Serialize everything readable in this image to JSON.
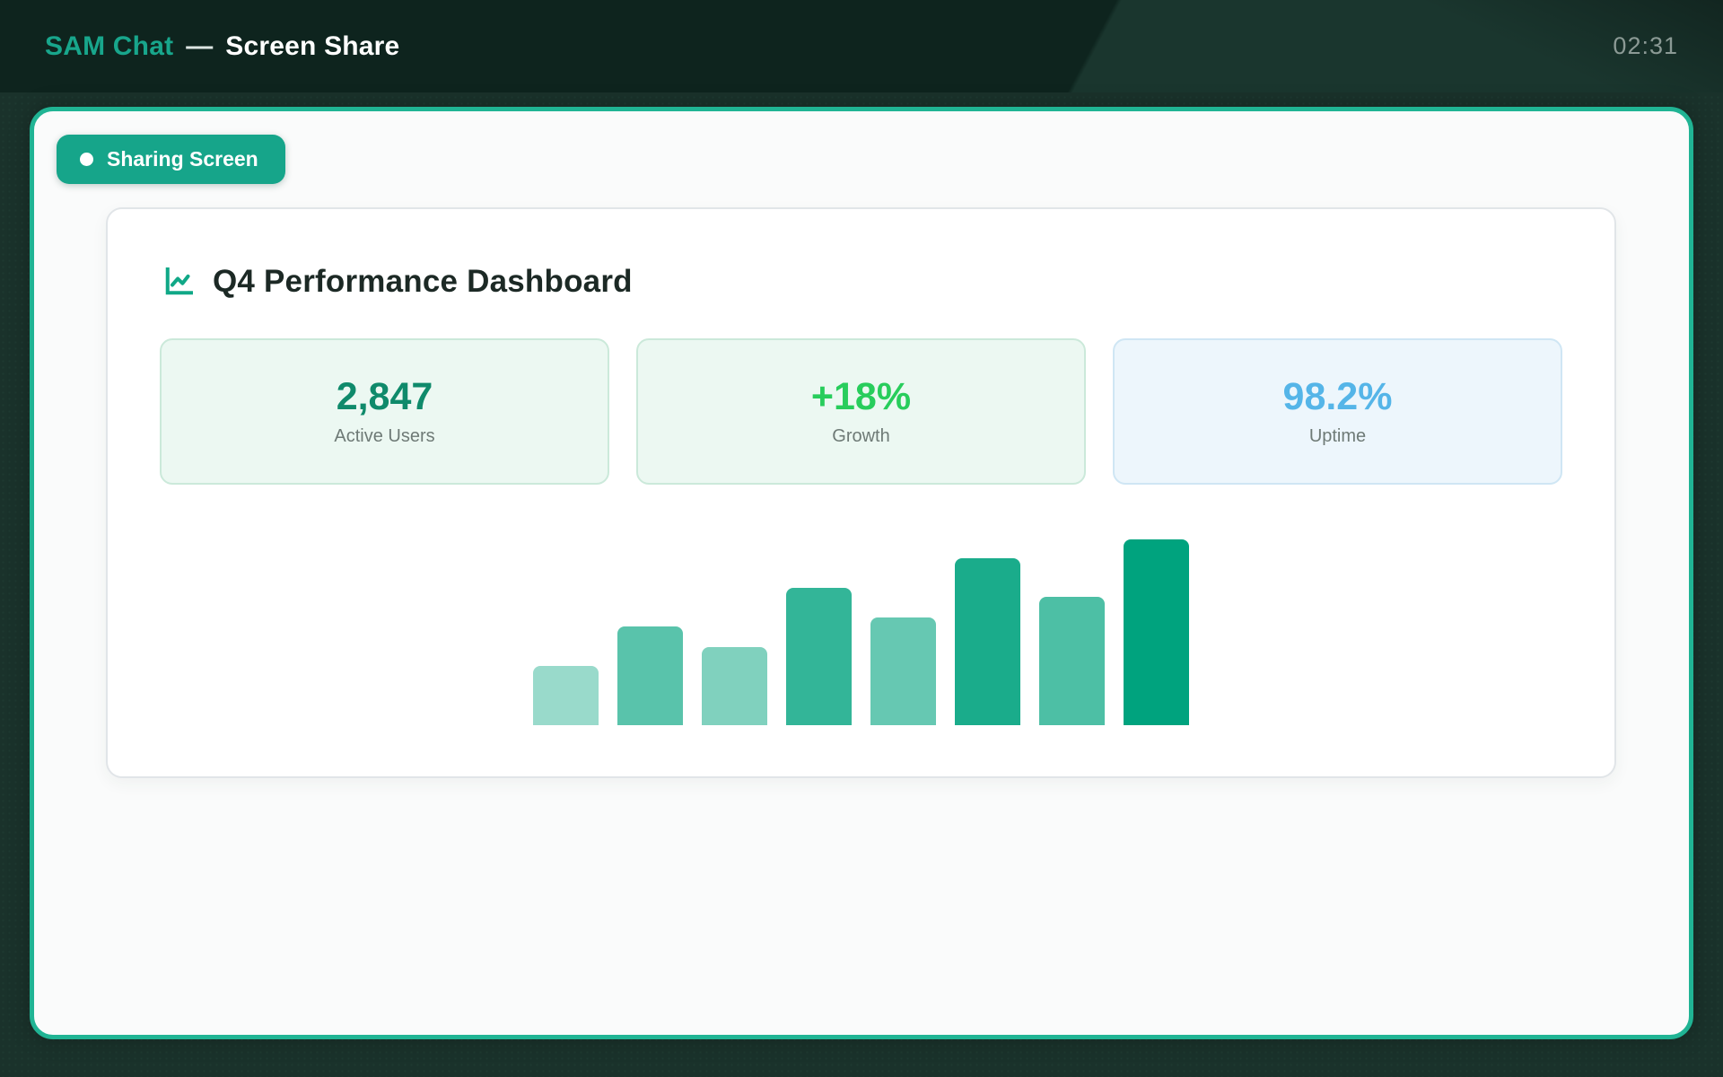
{
  "header": {
    "app_name": "SAM Chat",
    "separator": "—",
    "mode_title": "Screen Share",
    "timer": "02:31"
  },
  "badge": {
    "label": "Sharing Screen"
  },
  "dashboard": {
    "title": "Q4 Performance Dashboard",
    "title_icon": "line-chart-icon",
    "stats": [
      {
        "id": "active-users",
        "value": "2,847",
        "label": "Active Users",
        "value_color": "#0f8a6b",
        "bg": "#ecf8f2",
        "border": "#cbe9da"
      },
      {
        "id": "growth",
        "value": "+18%",
        "label": "Growth",
        "value_color": "#28cd5c",
        "bg": "#ecf8f2",
        "border": "#cbe9da"
      },
      {
        "id": "uptime",
        "value": "98.2%",
        "label": "Uptime",
        "value_color": "#55b5e8",
        "bg": "#edf6fc",
        "border": "#cfe6f4"
      }
    ],
    "chart_data": {
      "type": "bar",
      "categories": [
        "",
        "",
        "",
        "",
        "",
        "",
        "",
        ""
      ],
      "values": [
        32,
        53,
        42,
        74,
        58,
        90,
        69,
        100
      ],
      "value_note": "relative bar heights, percent of tallest bar; no axes, ticks, labels or gridlines are shown",
      "bar_colors": [
        "#99dacb",
        "#59c3ab",
        "#80d1be",
        "#33b598",
        "#66c8b2",
        "#1aac8b",
        "#4dbfa5",
        "#00a37e"
      ],
      "title": "",
      "xlabel": "",
      "ylabel": "",
      "ylim": [
        0,
        100
      ],
      "grid": false,
      "legend": false
    }
  },
  "colors": {
    "accent_teal": "#16a58a",
    "panel_border": "#20b494",
    "header_bg": "#0e241e",
    "body_bg": "#1a322b",
    "card_bg": "#ffffff"
  }
}
